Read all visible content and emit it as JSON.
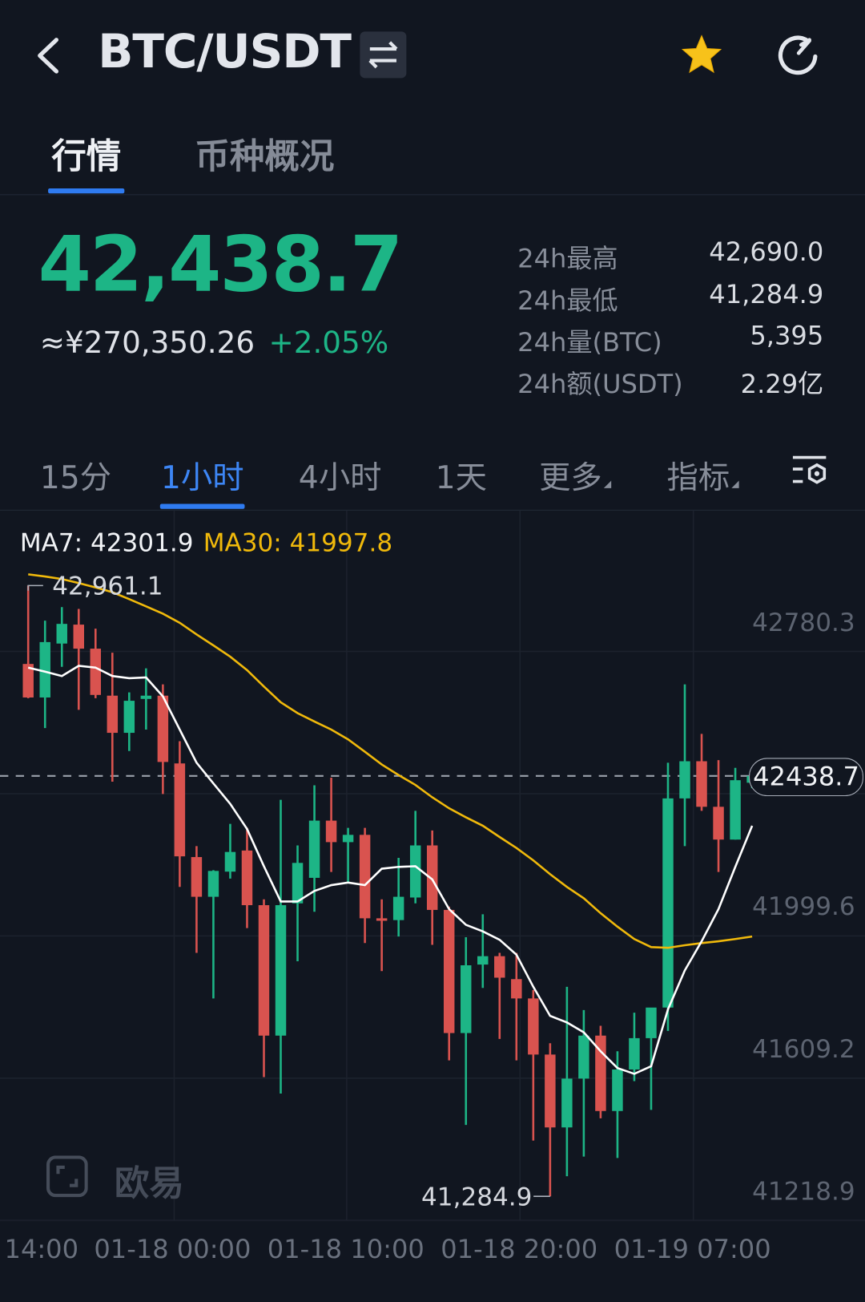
{
  "header": {
    "title": "BTC/USDT",
    "favorited": true
  },
  "tabs": [
    {
      "label": "行情",
      "active": true
    },
    {
      "label": "币种概况",
      "active": false
    }
  ],
  "ticker": {
    "last_price": "42,438.7",
    "cny_price": "≈¥270,350.26",
    "change_pct": "+2.05%",
    "stats": [
      {
        "label": "24h最高",
        "value": "42,690.0"
      },
      {
        "label": "24h最低",
        "value": "41,284.9"
      },
      {
        "label": "24h量(BTC)",
        "value": "5,395"
      },
      {
        "label": "24h额(USDT)",
        "value": "2.29亿"
      }
    ]
  },
  "intervals": [
    {
      "label": "15分"
    },
    {
      "label": "1小时",
      "active": true
    },
    {
      "label": "4小时"
    },
    {
      "label": "1天"
    },
    {
      "label": "更多"
    },
    {
      "label": "指标"
    }
  ],
  "ma_legend": {
    "ma7": "MA7: 42301.9",
    "ma30": "MA30: 41997.8"
  },
  "watermark": "欧易",
  "colors": {
    "up": "#1db586",
    "down": "#d9534f",
    "ma7": "#ffffff",
    "ma30": "#f0b90b",
    "accent": "#2f7bf0"
  },
  "chart_data": {
    "type": "candlestick",
    "interval": "1h",
    "ylim": [
      41218.9,
      43167
    ],
    "y_ticks": [
      "42780.3",
      "41999.6",
      "41609.2",
      "41218.9"
    ],
    "y_tick_values": [
      42780.3,
      42389.9,
      41999.6,
      41609.2,
      41218.9
    ],
    "x_ticks": [
      "14:00",
      "01-18 00:00",
      "01-18 10:00",
      "01-18 20:00",
      "01-19 07:00"
    ],
    "last_price_label": "42438.7",
    "last_price": 42438.7,
    "max_label": "42,961.1",
    "max_value": 42961.1,
    "min_label": "41,284.9",
    "min_value": 41284.9,
    "candles": [
      [
        42746,
        42961.1,
        42652,
        42654
      ],
      [
        42654,
        42865,
        42570,
        42806
      ],
      [
        42802,
        42902,
        42738,
        42856
      ],
      [
        42854,
        42897,
        42620,
        42788
      ],
      [
        42788,
        42843,
        42652,
        42661
      ],
      [
        42659,
        42777,
        42423,
        42557
      ],
      [
        42557,
        42668,
        42507,
        42645
      ],
      [
        42650,
        42734,
        42566,
        42659
      ],
      [
        42659,
        42690,
        42389,
        42477
      ],
      [
        42473,
        42534,
        42134,
        42218
      ],
      [
        42216,
        42246,
        41953,
        42107
      ],
      [
        42107,
        42180,
        41828,
        42178
      ],
      [
        42176,
        42307,
        42157,
        42230
      ],
      [
        42234,
        42296,
        42021,
        42084
      ],
      [
        42084,
        42100,
        41612,
        41726
      ],
      [
        41726,
        42373,
        41567,
        42084
      ],
      [
        42089,
        42248,
        41930,
        42200
      ],
      [
        42159,
        42413,
        42066,
        42316
      ],
      [
        42316,
        42434,
        42175,
        42257
      ],
      [
        42257,
        42296,
        42146,
        42277
      ],
      [
        42277,
        42296,
        41980,
        42048
      ],
      [
        42048,
        42100,
        41903,
        42043
      ],
      [
        42043,
        42214,
        41998,
        42107
      ],
      [
        42105,
        42343,
        42089,
        42248
      ],
      [
        42248,
        42289,
        41975,
        42071
      ],
      [
        42071,
        42080,
        41658,
        41733
      ],
      [
        41733,
        41996,
        41481,
        41919
      ],
      [
        41921,
        42059,
        41857,
        41944
      ],
      [
        41944,
        41953,
        41717,
        41885
      ],
      [
        41881,
        41953,
        41658,
        41828
      ],
      [
        41828,
        41851,
        41438,
        41674
      ],
      [
        41674,
        41705,
        41284.9,
        41474
      ],
      [
        41474,
        41860,
        41340,
        41608
      ],
      [
        41608,
        41796,
        41394,
        41726
      ],
      [
        41726,
        41753,
        41499,
        41519
      ],
      [
        41519,
        41683,
        41390,
        41633
      ],
      [
        41633,
        41789,
        41601,
        41719
      ],
      [
        41719,
        41789,
        41522,
        41803
      ],
      [
        41803,
        42475,
        41739,
        42377
      ],
      [
        42377,
        42690,
        42246,
        42479
      ],
      [
        42479,
        42554,
        42343,
        42354
      ],
      [
        42354,
        42482,
        42175,
        42264
      ],
      [
        42264,
        42461,
        42264,
        42427
      ],
      [
        42420,
        42445,
        42405,
        42438.7
      ]
    ],
    "candle_fields": [
      "open",
      "high",
      "low",
      "close"
    ],
    "ma7": [
      42736,
      42725,
      42713,
      42741,
      42736,
      42713,
      42707,
      42709,
      42657,
      42566,
      42475,
      42418,
      42362,
      42293,
      42191,
      42094,
      42094,
      42123,
      42139,
      42146,
      42139,
      42184,
      42189,
      42191,
      42155,
      42073,
      42030,
      42012,
      41989,
      41948,
      41860,
      41780,
      41762,
      41735,
      41683,
      41637,
      41621,
      41642,
      41798,
      41905,
      41985,
      42073,
      42189,
      42301.9
    ],
    "ma30": [
      42992,
      42986,
      42979,
      42968,
      42956,
      42943,
      42924,
      42904,
      42884,
      42859,
      42827,
      42797,
      42766,
      42729,
      42684,
      42641,
      42611,
      42588,
      42566,
      42539,
      42505,
      42470,
      42441,
      42414,
      42380,
      42350,
      42325,
      42302,
      42271,
      42241,
      42207,
      42169,
      42134,
      42103,
      42062,
      42025,
      41991,
      41969,
      41967,
      41974,
      41980,
      41985,
      41991,
      41997.8
    ]
  }
}
